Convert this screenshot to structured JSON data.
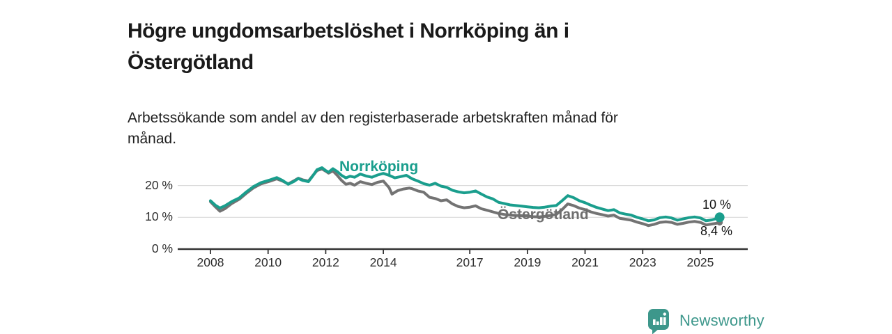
{
  "header": {
    "title": "Högre ungdomsarbetslöshet i Norrköping än i\nÖstergötland",
    "subtitle": "Arbetssökande som andel av den registerbaserade arbetskraften månad för\nmånad."
  },
  "footer": {
    "brand": "Newsworthy"
  },
  "colors": {
    "norrkoping": "#1a9e8d",
    "ostergotland": "#737373",
    "brand_teal": "#3d978b",
    "axis": "#333333",
    "gridline": "#d9d9d9",
    "text": "#1a1a1a"
  },
  "chart_data": {
    "type": "line",
    "title": "Högre ungdomsarbetslöshet i Norrköping än i Östergötland",
    "subtitle": "Arbetssökande som andel av den registerbaserade arbetskraften månad för månad.",
    "xlabel": "",
    "ylabel": "",
    "y_unit": "%",
    "x_unit": "year",
    "ylim": [
      0,
      27
    ],
    "xlim": [
      2006.9,
      2026.6
    ],
    "grid": "horizontal",
    "legend_position": "inline-labels",
    "x_ticks": [
      2008,
      2010,
      2012,
      2014,
      2017,
      2019,
      2021,
      2023,
      2025
    ],
    "y_ticks": [
      {
        "value": 0,
        "label": "0 %"
      },
      {
        "value": 10,
        "label": "10 %"
      },
      {
        "value": 20,
        "label": "20 %"
      }
    ],
    "series": [
      {
        "name": "Östergötland",
        "color": "#737373",
        "end_value": 8.4,
        "end_label": "8,4 %",
        "points": [
          [
            2008.0,
            14.9
          ],
          [
            2008.17,
            13.3
          ],
          [
            2008.33,
            11.9
          ],
          [
            2008.5,
            12.7
          ],
          [
            2008.75,
            14.4
          ],
          [
            2009.0,
            15.7
          ],
          [
            2009.25,
            17.6
          ],
          [
            2009.5,
            19.3
          ],
          [
            2009.75,
            20.5
          ],
          [
            2010.08,
            21.4
          ],
          [
            2010.3,
            22.1
          ],
          [
            2010.5,
            21.4
          ],
          [
            2010.7,
            20.5
          ],
          [
            2010.9,
            21.5
          ],
          [
            2011.05,
            22.3
          ],
          [
            2011.2,
            21.8
          ],
          [
            2011.4,
            21.4
          ],
          [
            2011.55,
            23.1
          ],
          [
            2011.7,
            24.7
          ],
          [
            2011.87,
            25.2
          ],
          [
            2012.0,
            24.5
          ],
          [
            2012.1,
            23.9
          ],
          [
            2012.25,
            24.6
          ],
          [
            2012.4,
            23.2
          ],
          [
            2012.55,
            21.6
          ],
          [
            2012.7,
            20.4
          ],
          [
            2012.85,
            20.7
          ],
          [
            2013.0,
            20.1
          ],
          [
            2013.2,
            21.2
          ],
          [
            2013.4,
            20.7
          ],
          [
            2013.6,
            20.3
          ],
          [
            2013.8,
            21.0
          ],
          [
            2014.0,
            21.4
          ],
          [
            2014.2,
            19.3
          ],
          [
            2014.3,
            17.3
          ],
          [
            2014.5,
            18.4
          ],
          [
            2014.7,
            18.9
          ],
          [
            2014.9,
            19.2
          ],
          [
            2015.0,
            19.0
          ],
          [
            2015.2,
            18.3
          ],
          [
            2015.4,
            17.9
          ],
          [
            2015.6,
            16.3
          ],
          [
            2015.8,
            15.9
          ],
          [
            2016.0,
            15.2
          ],
          [
            2016.2,
            15.5
          ],
          [
            2016.4,
            14.2
          ],
          [
            2016.6,
            13.4
          ],
          [
            2016.8,
            13.0
          ],
          [
            2017.0,
            13.2
          ],
          [
            2017.2,
            13.6
          ],
          [
            2017.4,
            12.7
          ],
          [
            2017.6,
            12.2
          ],
          [
            2017.8,
            11.7
          ],
          [
            2018.0,
            11.2
          ],
          [
            2018.2,
            10.9
          ],
          [
            2018.4,
            10.7
          ],
          [
            2018.6,
            10.6
          ],
          [
            2018.8,
            10.5
          ],
          [
            2019.0,
            10.4
          ],
          [
            2019.2,
            10.2
          ],
          [
            2019.4,
            10.1
          ],
          [
            2019.6,
            10.3
          ],
          [
            2019.8,
            10.6
          ],
          [
            2020.0,
            10.9
          ],
          [
            2020.2,
            12.4
          ],
          [
            2020.4,
            14.2
          ],
          [
            2020.6,
            13.7
          ],
          [
            2020.8,
            12.9
          ],
          [
            2021.0,
            12.4
          ],
          [
            2021.2,
            11.7
          ],
          [
            2021.4,
            11.2
          ],
          [
            2021.6,
            10.8
          ],
          [
            2021.8,
            10.4
          ],
          [
            2022.0,
            10.7
          ],
          [
            2022.2,
            9.7
          ],
          [
            2022.4,
            9.4
          ],
          [
            2022.6,
            9.1
          ],
          [
            2022.8,
            8.5
          ],
          [
            2023.0,
            8.0
          ],
          [
            2023.2,
            7.4
          ],
          [
            2023.4,
            7.8
          ],
          [
            2023.6,
            8.4
          ],
          [
            2023.8,
            8.6
          ],
          [
            2024.0,
            8.4
          ],
          [
            2024.2,
            7.8
          ],
          [
            2024.4,
            8.1
          ],
          [
            2024.6,
            8.5
          ],
          [
            2024.8,
            8.7
          ],
          [
            2025.0,
            8.4
          ],
          [
            2025.2,
            7.6
          ],
          [
            2025.4,
            7.9
          ],
          [
            2025.55,
            8.1
          ],
          [
            2025.67,
            8.4
          ]
        ]
      },
      {
        "name": "Norrköping",
        "color": "#1a9e8d",
        "end_value": 10,
        "end_label": "10 %",
        "points": [
          [
            2008.0,
            15.2
          ],
          [
            2008.17,
            13.8
          ],
          [
            2008.33,
            12.9
          ],
          [
            2008.5,
            13.6
          ],
          [
            2008.75,
            15.0
          ],
          [
            2009.0,
            16.1
          ],
          [
            2009.25,
            18.0
          ],
          [
            2009.5,
            19.7
          ],
          [
            2009.75,
            20.9
          ],
          [
            2010.08,
            21.8
          ],
          [
            2010.3,
            22.5
          ],
          [
            2010.5,
            21.6
          ],
          [
            2010.7,
            20.4
          ],
          [
            2010.9,
            21.3
          ],
          [
            2011.05,
            22.2
          ],
          [
            2011.2,
            21.6
          ],
          [
            2011.4,
            21.2
          ],
          [
            2011.55,
            23.0
          ],
          [
            2011.7,
            25.0
          ],
          [
            2011.87,
            25.6
          ],
          [
            2012.0,
            24.7
          ],
          [
            2012.1,
            24.2
          ],
          [
            2012.25,
            25.3
          ],
          [
            2012.4,
            24.4
          ],
          [
            2012.55,
            23.2
          ],
          [
            2012.7,
            22.4
          ],
          [
            2012.85,
            22.9
          ],
          [
            2013.0,
            22.6
          ],
          [
            2013.2,
            23.6
          ],
          [
            2013.4,
            23.0
          ],
          [
            2013.6,
            22.6
          ],
          [
            2013.8,
            23.3
          ],
          [
            2014.0,
            23.8
          ],
          [
            2014.2,
            23.2
          ],
          [
            2014.4,
            22.4
          ],
          [
            2014.6,
            22.8
          ],
          [
            2014.8,
            23.2
          ],
          [
            2015.0,
            22.1
          ],
          [
            2015.2,
            21.4
          ],
          [
            2015.4,
            20.6
          ],
          [
            2015.6,
            20.1
          ],
          [
            2015.8,
            20.7
          ],
          [
            2016.0,
            19.8
          ],
          [
            2016.2,
            19.4
          ],
          [
            2016.4,
            18.5
          ],
          [
            2016.6,
            18.0
          ],
          [
            2016.8,
            17.7
          ],
          [
            2017.0,
            17.9
          ],
          [
            2017.2,
            18.3
          ],
          [
            2017.4,
            17.3
          ],
          [
            2017.6,
            16.4
          ],
          [
            2017.8,
            15.8
          ],
          [
            2018.0,
            14.7
          ],
          [
            2018.2,
            14.3
          ],
          [
            2018.4,
            13.9
          ],
          [
            2018.6,
            13.7
          ],
          [
            2018.8,
            13.5
          ],
          [
            2019.0,
            13.3
          ],
          [
            2019.2,
            13.1
          ],
          [
            2019.4,
            13.0
          ],
          [
            2019.6,
            13.2
          ],
          [
            2019.8,
            13.5
          ],
          [
            2020.0,
            13.7
          ],
          [
            2020.2,
            15.2
          ],
          [
            2020.4,
            16.8
          ],
          [
            2020.6,
            16.2
          ],
          [
            2020.8,
            15.2
          ],
          [
            2021.0,
            14.6
          ],
          [
            2021.2,
            13.8
          ],
          [
            2021.4,
            13.1
          ],
          [
            2021.6,
            12.6
          ],
          [
            2021.8,
            12.1
          ],
          [
            2022.0,
            12.4
          ],
          [
            2022.2,
            11.4
          ],
          [
            2022.4,
            11.0
          ],
          [
            2022.6,
            10.7
          ],
          [
            2022.8,
            10.0
          ],
          [
            2023.0,
            9.5
          ],
          [
            2023.2,
            8.9
          ],
          [
            2023.4,
            9.2
          ],
          [
            2023.6,
            9.9
          ],
          [
            2023.8,
            10.1
          ],
          [
            2024.0,
            9.8
          ],
          [
            2024.2,
            9.1
          ],
          [
            2024.4,
            9.5
          ],
          [
            2024.6,
            9.9
          ],
          [
            2024.8,
            10.1
          ],
          [
            2025.0,
            9.8
          ],
          [
            2025.2,
            8.9
          ],
          [
            2025.4,
            9.2
          ],
          [
            2025.55,
            9.6
          ],
          [
            2025.67,
            10.0
          ]
        ]
      }
    ]
  }
}
